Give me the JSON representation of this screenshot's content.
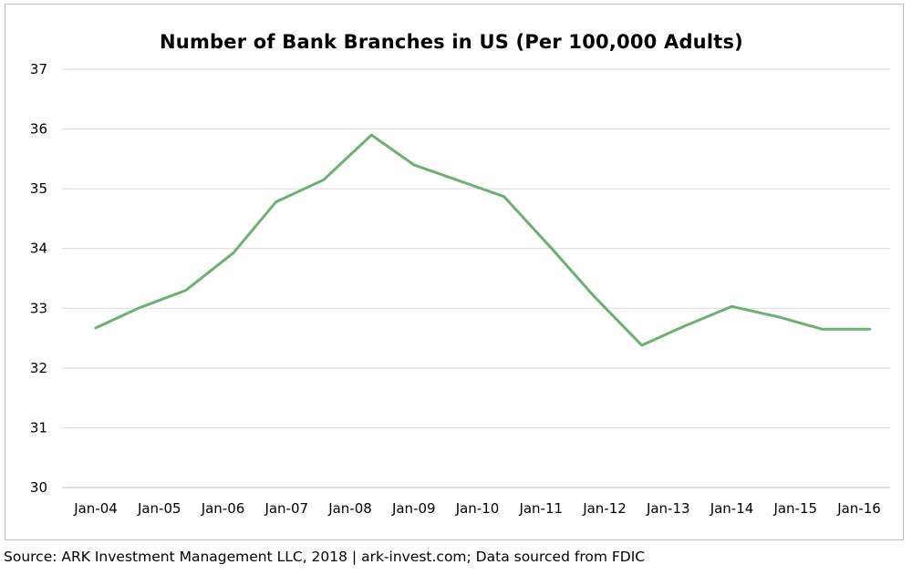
{
  "chart_data": {
    "type": "line",
    "title": "Number of Bank Branches in US (Per 100,000 Adults)",
    "xlabel": "",
    "ylabel": "",
    "categories": [
      "Jan-04",
      "Jan-05",
      "Jan-06",
      "Jan-07",
      "Jan-08",
      "Jan-09",
      "Jan-10",
      "Jan-11",
      "Jan-12",
      "Jan-13",
      "Jan-14",
      "Jan-15",
      "Jan-16"
    ],
    "x": [
      "2004-01",
      "2004-09",
      "2005-06",
      "2006-03",
      "2006-11",
      "2007-08",
      "2008-05",
      "2009-01",
      "2009-10",
      "2010-06",
      "2011-03",
      "2011-11",
      "2012-08",
      "2013-04",
      "2014-01",
      "2014-10",
      "2015-06",
      "2016-03"
    ],
    "series": [
      {
        "values": [
          32.67,
          33.0,
          33.3,
          33.93,
          34.78,
          35.15,
          35.9,
          35.4,
          35.12,
          34.87,
          34.0,
          33.2,
          32.38,
          32.7,
          33.03,
          32.85,
          32.65,
          32.65
        ]
      }
    ],
    "ylim": [
      30,
      37
    ],
    "yticks": [
      30,
      31,
      32,
      33,
      34,
      35,
      36,
      37
    ],
    "grid": true,
    "legend": "none",
    "line_color": "#6ab26e"
  },
  "source": "Source: ARK Investment Management LLC, 2018  |  ark-invest.com; Data sourced from FDIC"
}
